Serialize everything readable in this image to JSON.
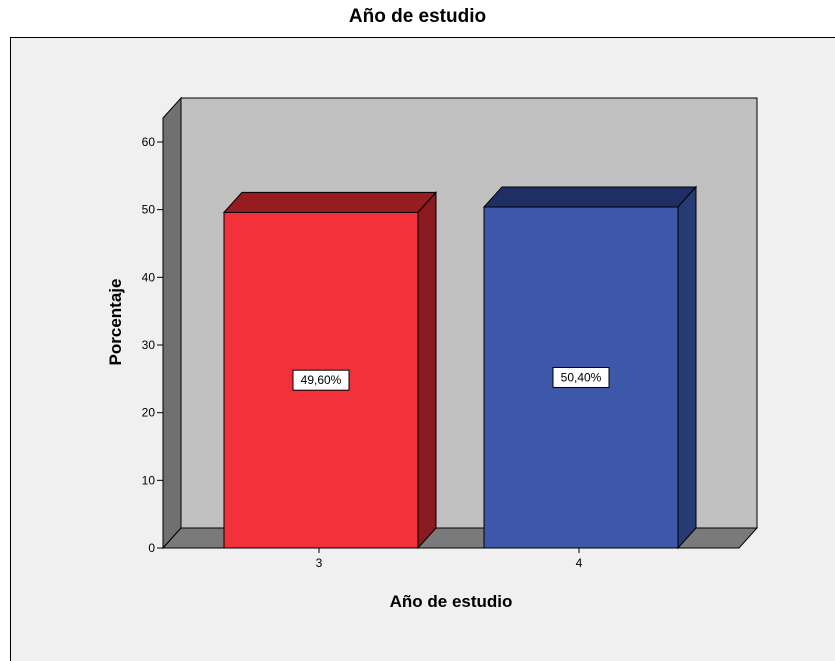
{
  "chart_data": {
    "type": "bar",
    "title": "Año de estudio",
    "xlabel": "Año de estudio",
    "ylabel": "Porcentaje",
    "categories": [
      "3",
      "4"
    ],
    "values": [
      49.6,
      50.4
    ],
    "data_labels": [
      "49,60%",
      "50,40%"
    ],
    "ylim": [
      0,
      60
    ],
    "yticks": [
      0,
      10,
      20,
      30,
      40,
      50,
      60
    ],
    "grid": false,
    "legend": "none",
    "style": "3d",
    "colors": {
      "bar_fronts": [
        "#f2313a",
        "#3d57a9"
      ],
      "bar_tops": [
        "#961c22",
        "#1f2f66"
      ],
      "bar_sides": [
        "#8b1a20",
        "#263a73"
      ],
      "wall": "#c0c0c0",
      "floor": "#7a7a7a",
      "side_wall": "#707070",
      "frame_bg": "#f0f0f0"
    }
  }
}
